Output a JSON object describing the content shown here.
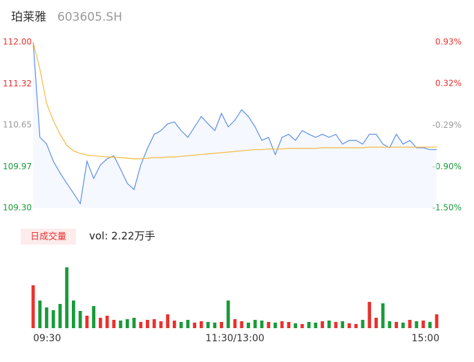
{
  "chart_data": {
    "type": "intraday",
    "title": "珀莱雅",
    "subtitle": "603605.SH",
    "x": [
      0,
      4,
      8,
      12,
      16,
      20,
      24,
      28,
      32,
      36,
      40,
      44,
      48,
      52,
      56,
      60,
      64,
      68,
      72,
      76,
      80,
      84,
      88,
      92,
      96,
      100,
      104,
      108,
      112,
      116,
      120,
      124,
      128,
      132,
      136,
      140,
      144,
      148,
      152,
      156,
      160,
      164,
      168,
      172,
      176,
      180,
      184,
      188,
      192,
      196,
      200,
      204,
      208,
      212,
      216,
      220,
      224,
      228,
      232,
      236,
      240
    ],
    "xlim": [
      0,
      240
    ],
    "xticks": [
      {
        "value": 0,
        "label": "09:30"
      },
      {
        "value": 120,
        "label": "11:30/13:00"
      },
      {
        "value": 240,
        "label": "15:00"
      }
    ],
    "ylim": [
      109.3,
      112.0
    ],
    "yticks": [
      {
        "value": 112.0,
        "label": "112.00"
      },
      {
        "value": 111.32,
        "label": "111.32"
      },
      {
        "value": 110.65,
        "label": "110.65"
      },
      {
        "value": 109.97,
        "label": "109.97"
      },
      {
        "value": 109.3,
        "label": "109.30"
      }
    ],
    "y2lim": [
      -1.5,
      0.93
    ],
    "y2ticks": [
      {
        "value": 0.93,
        "label": "0.93%"
      },
      {
        "value": 0.32,
        "label": "0.32%"
      },
      {
        "value": -0.29,
        "label": "-0.29%"
      },
      {
        "value": -0.9,
        "label": "-0.90%"
      },
      {
        "value": -1.5,
        "label": "-1.50%"
      }
    ],
    "tick_colors": [
      "#e8322f",
      "#e8322f",
      "#999999",
      "#1a9a3a",
      "#1a9a3a"
    ],
    "series": [
      {
        "name": "price",
        "color": "#5b8de8",
        "values": [
          112.0,
          110.45,
          110.34,
          110.06,
          109.87,
          109.7,
          109.54,
          109.37,
          110.06,
          109.78,
          110.0,
          110.1,
          110.15,
          109.93,
          109.7,
          109.6,
          110.0,
          110.27,
          110.5,
          110.56,
          110.67,
          110.7,
          110.56,
          110.45,
          110.62,
          110.79,
          110.67,
          110.56,
          110.84,
          110.62,
          110.73,
          110.9,
          110.79,
          110.62,
          110.4,
          110.45,
          110.17,
          110.45,
          110.5,
          110.4,
          110.56,
          110.5,
          110.45,
          110.5,
          110.45,
          110.5,
          110.34,
          110.4,
          110.4,
          110.34,
          110.5,
          110.5,
          110.34,
          110.28,
          110.5,
          110.34,
          110.4,
          110.28,
          110.28,
          110.25,
          110.25
        ]
      },
      {
        "name": "average",
        "color": "#f5b940",
        "values": [
          112.0,
          111.56,
          111.0,
          110.72,
          110.5,
          110.32,
          110.23,
          110.19,
          110.16,
          110.15,
          110.14,
          110.13,
          110.13,
          110.12,
          110.11,
          110.1,
          110.1,
          110.11,
          110.12,
          110.12,
          110.13,
          110.13,
          110.14,
          110.15,
          110.16,
          110.17,
          110.18,
          110.19,
          110.2,
          110.21,
          110.22,
          110.23,
          110.24,
          110.25,
          110.25,
          110.26,
          110.26,
          110.26,
          110.27,
          110.27,
          110.27,
          110.27,
          110.27,
          110.28,
          110.28,
          110.28,
          110.28,
          110.28,
          110.28,
          110.28,
          110.29,
          110.29,
          110.29,
          110.29,
          110.29,
          110.29,
          110.29,
          110.29,
          110.29,
          110.29,
          110.29
        ]
      }
    ],
    "volume": {
      "label": "日成交量",
      "summary": "vol: 2.22万手",
      "ylim": [
        0,
        900
      ],
      "up_color": "#e8322f",
      "down_color": "#1a9a3a",
      "values": [
        620,
        400,
        300,
        260,
        350,
        880,
        400,
        250,
        180,
        320,
        150,
        180,
        120,
        110,
        130,
        150,
        90,
        120,
        130,
        100,
        200,
        110,
        90,
        120,
        80,
        100,
        90,
        80,
        90,
        400,
        130,
        100,
        80,
        120,
        110,
        90,
        80,
        100,
        90,
        70,
        60,
        90,
        80,
        100,
        110,
        90,
        100,
        70,
        60,
        120,
        380,
        150,
        360,
        100,
        90,
        80,
        120,
        100,
        110,
        90,
        200
      ]
    }
  }
}
